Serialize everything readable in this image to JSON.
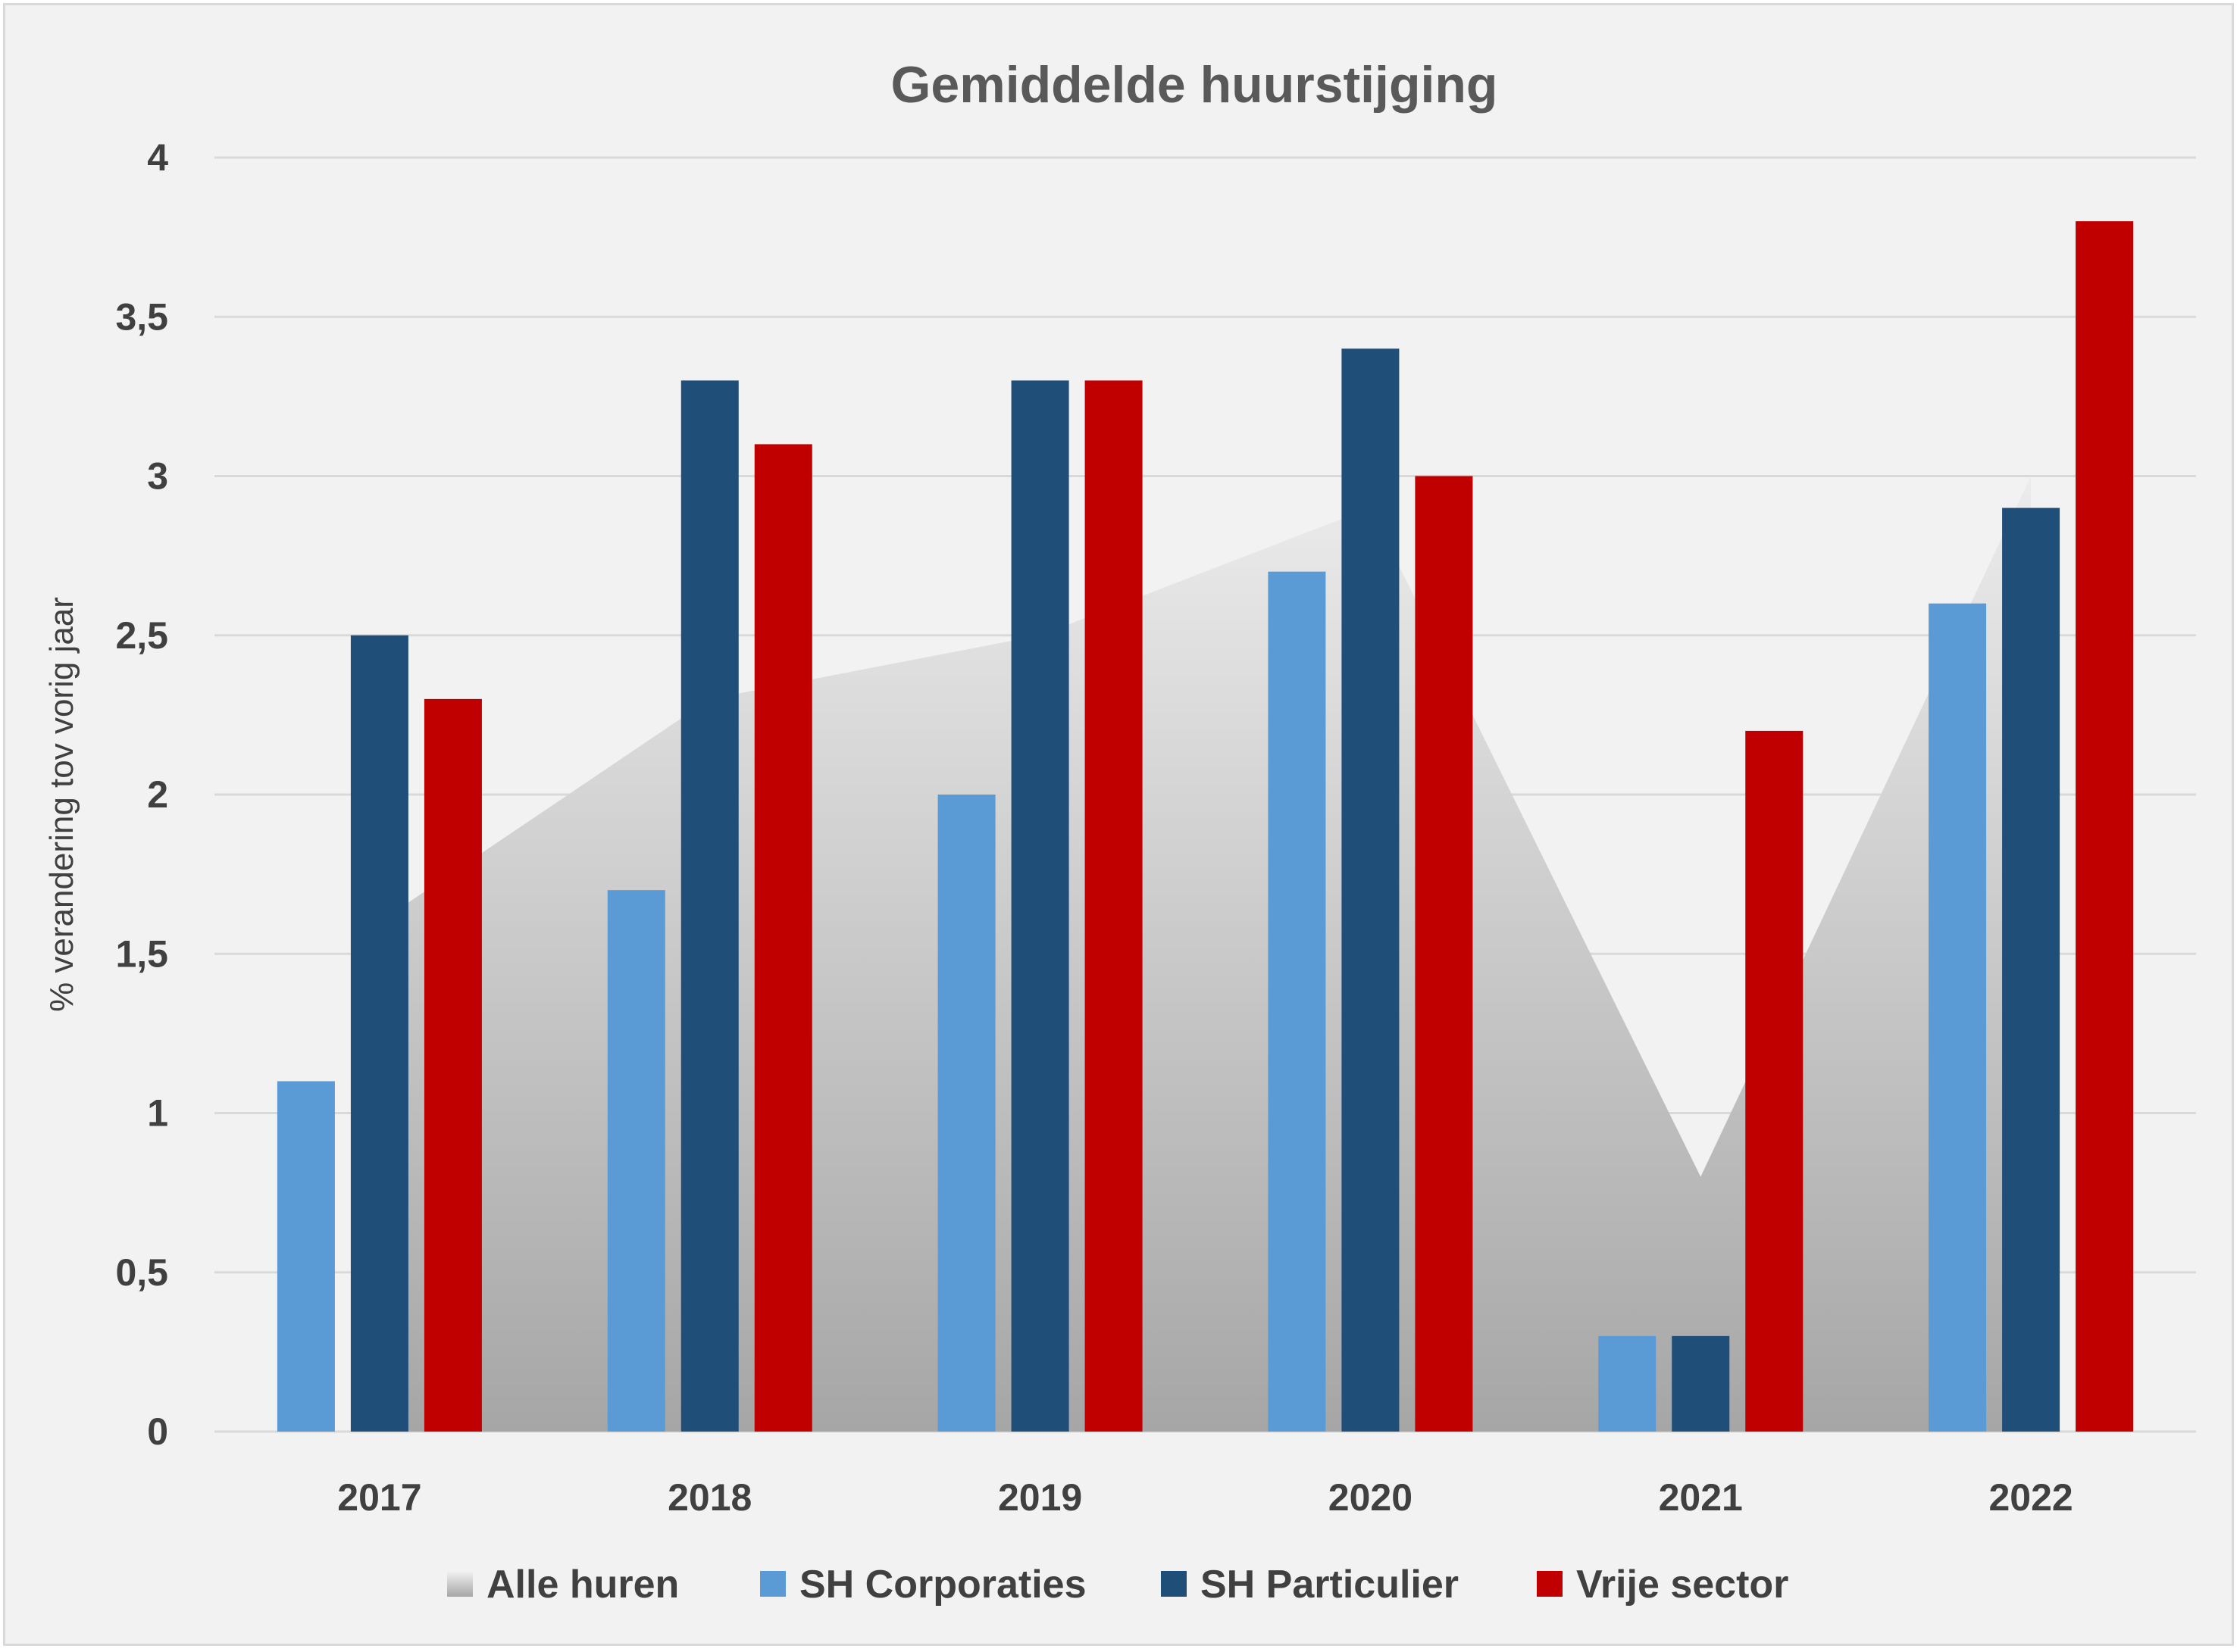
{
  "chart_data": {
    "type": "bar",
    "title": "Gemiddelde huurstijging",
    "xlabel": "",
    "ylabel": "% verandering  tov vorig jaar",
    "ylim": [
      0,
      4
    ],
    "yticks": [
      0,
      0.5,
      1,
      1.5,
      2,
      2.5,
      3,
      3.5,
      4
    ],
    "ytick_labels": [
      "0",
      "0,5",
      "1",
      "1,5",
      "2",
      "2,5",
      "3",
      "3,5",
      "4"
    ],
    "categories": [
      "2017",
      "2018",
      "2019",
      "2020",
      "2021",
      "2022"
    ],
    "grid": true,
    "legend_position": "bottom",
    "area_series": {
      "name": "Alle huren",
      "type": "area",
      "color": "#bfbfbf",
      "values": [
        1.6,
        2.3,
        2.5,
        2.9,
        0.8,
        3.0
      ]
    },
    "series": [
      {
        "name": "SH Corporaties",
        "color": "#5b9bd5",
        "values": [
          1.1,
          1.7,
          2.0,
          2.7,
          0.3,
          2.6
        ]
      },
      {
        "name": "SH Particulier",
        "color": "#1f4e79",
        "values": [
          2.5,
          3.3,
          3.3,
          3.4,
          0.3,
          2.9
        ]
      },
      {
        "name": "Vrije sector",
        "color": "#c00000",
        "values": [
          2.3,
          3.1,
          3.3,
          3.0,
          2.2,
          3.8
        ]
      }
    ]
  }
}
